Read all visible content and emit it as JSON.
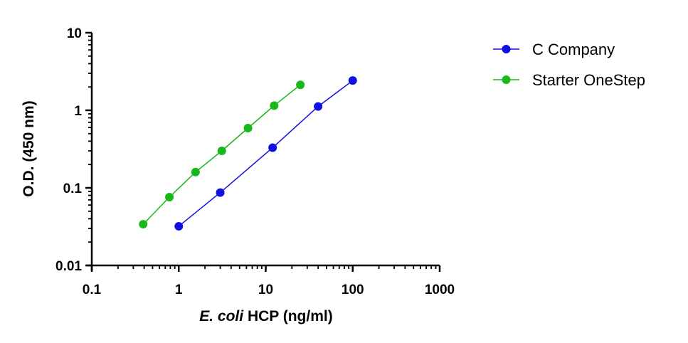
{
  "chart_data": {
    "type": "scatter",
    "xscale": "log",
    "yscale": "log",
    "xlim": [
      0.1,
      1000
    ],
    "ylim": [
      0.01,
      10
    ],
    "xticks": [
      "0.1",
      "1",
      "10",
      "100",
      "1000"
    ],
    "yticks": [
      "0.01",
      "0.1",
      "1",
      "10"
    ],
    "xlabel_italic": "E. coli",
    "xlabel_rest": " HCP (ng/ml)",
    "ylabel": "O.D. (450 nm)",
    "grid": false,
    "legend_position": "top-right, outside plot",
    "series": [
      {
        "name": "C Company",
        "color": "#1010e0",
        "x": [
          1,
          3,
          12,
          40,
          100
        ],
        "y": [
          0.032,
          0.087,
          0.33,
          1.12,
          2.42
        ]
      },
      {
        "name": "Starter OneStep",
        "color": "#18b818",
        "x": [
          0.39,
          0.78,
          1.56,
          3.125,
          6.25,
          12.5,
          25
        ],
        "y": [
          0.034,
          0.076,
          0.16,
          0.3,
          0.59,
          1.15,
          2.13
        ]
      }
    ]
  }
}
